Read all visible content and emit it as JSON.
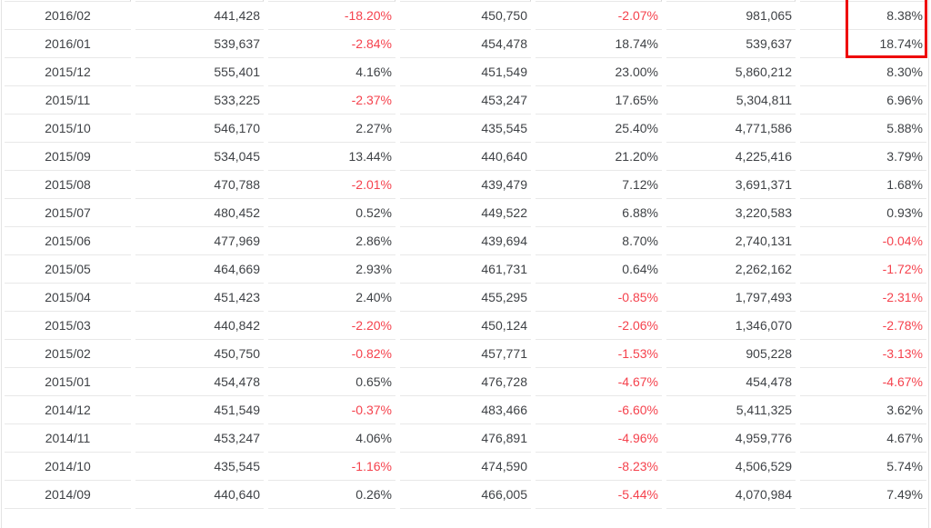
{
  "colors": {
    "text": "#3f4246",
    "negative": "#f5424d",
    "row_border": "#e8e8e8",
    "tick": "#d8d8d8",
    "outer_border": "#e3e3e3",
    "highlight": "#ee0000",
    "background": "#ffffff"
  },
  "table": {
    "rows": [
      [
        "2016/02",
        "441,428",
        "-18.20%",
        "450,750",
        "-2.07%",
        "981,065",
        "8.38%"
      ],
      [
        "2016/01",
        "539,637",
        "-2.84%",
        "454,478",
        "18.74%",
        "539,637",
        "18.74%"
      ],
      [
        "2015/12",
        "555,401",
        "4.16%",
        "451,549",
        "23.00%",
        "5,860,212",
        "8.30%"
      ],
      [
        "2015/11",
        "533,225",
        "-2.37%",
        "453,247",
        "17.65%",
        "5,304,811",
        "6.96%"
      ],
      [
        "2015/10",
        "546,170",
        "2.27%",
        "435,545",
        "25.40%",
        "4,771,586",
        "5.88%"
      ],
      [
        "2015/09",
        "534,045",
        "13.44%",
        "440,640",
        "21.20%",
        "4,225,416",
        "3.79%"
      ],
      [
        "2015/08",
        "470,788",
        "-2.01%",
        "439,479",
        "7.12%",
        "3,691,371",
        "1.68%"
      ],
      [
        "2015/07",
        "480,452",
        "0.52%",
        "449,522",
        "6.88%",
        "3,220,583",
        "0.93%"
      ],
      [
        "2015/06",
        "477,969",
        "2.86%",
        "439,694",
        "8.70%",
        "2,740,131",
        "-0.04%"
      ],
      [
        "2015/05",
        "464,669",
        "2.93%",
        "461,731",
        "0.64%",
        "2,262,162",
        "-1.72%"
      ],
      [
        "2015/04",
        "451,423",
        "2.40%",
        "455,295",
        "-0.85%",
        "1,797,493",
        "-2.31%"
      ],
      [
        "2015/03",
        "440,842",
        "-2.20%",
        "450,124",
        "-2.06%",
        "1,346,070",
        "-2.78%"
      ],
      [
        "2015/02",
        "450,750",
        "-0.82%",
        "457,771",
        "-1.53%",
        "905,228",
        "-3.13%"
      ],
      [
        "2015/01",
        "454,478",
        "0.65%",
        "476,728",
        "-4.67%",
        "454,478",
        "-4.67%"
      ],
      [
        "2014/12",
        "451,549",
        "-0.37%",
        "483,466",
        "-6.60%",
        "5,411,325",
        "3.62%"
      ],
      [
        "2014/11",
        "453,247",
        "4.06%",
        "476,891",
        "-4.96%",
        "4,959,776",
        "4.67%"
      ],
      [
        "2014/10",
        "435,545",
        "-1.16%",
        "474,590",
        "-8.23%",
        "4,506,529",
        "5.74%"
      ],
      [
        "2014/09",
        "440,640",
        "0.26%",
        "466,005",
        "-5.44%",
        "4,070,984",
        "7.49%"
      ]
    ],
    "highlighted_cells": [
      "8.38%",
      "18.74%"
    ]
  }
}
